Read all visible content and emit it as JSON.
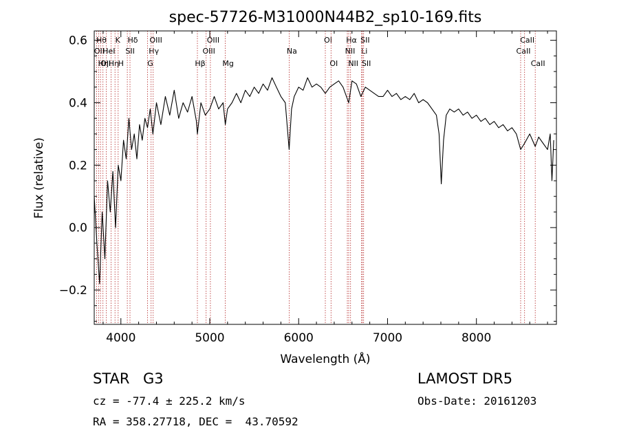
{
  "chart_data": {
    "type": "line",
    "title": "spec-57726-M31000N44B2_sp10-169.fits",
    "xlabel": "Wavelength (Å)",
    "ylabel": "Flux (relative)",
    "xlim": [
      3700,
      8900
    ],
    "ylim": [
      -0.31,
      0.63
    ],
    "xticks": [
      4000,
      5000,
      6000,
      7000,
      8000
    ],
    "yticks": [
      -0.2,
      0.0,
      0.2,
      0.4,
      0.6
    ],
    "xtick_labels": [
      "4000",
      "5000",
      "6000",
      "7000",
      "8000"
    ],
    "ytick_labels": [
      "−0.2",
      "0.0",
      "0.2",
      "0.4",
      "0.6"
    ],
    "grid": false,
    "series": [
      {
        "x": [
          3700,
          3730,
          3760,
          3790,
          3820,
          3850,
          3880,
          3910,
          3940,
          3970,
          4000,
          4030,
          4060,
          4090,
          4120,
          4150,
          4180,
          4210,
          4240,
          4270,
          4300,
          4330,
          4360,
          4400,
          4450,
          4500,
          4550,
          4600,
          4650,
          4700,
          4750,
          4800,
          4850,
          4861,
          4900,
          4950,
          5000,
          5050,
          5100,
          5150,
          5175,
          5200,
          5250,
          5300,
          5350,
          5400,
          5450,
          5500,
          5550,
          5600,
          5650,
          5700,
          5750,
          5800,
          5850,
          5893,
          5920,
          5950,
          6000,
          6050,
          6100,
          6150,
          6200,
          6250,
          6300,
          6350,
          6400,
          6450,
          6500,
          6563,
          6600,
          6650,
          6700,
          6750,
          6800,
          6850,
          6900,
          6950,
          7000,
          7050,
          7100,
          7150,
          7200,
          7250,
          7300,
          7350,
          7400,
          7450,
          7500,
          7550,
          7580,
          7605,
          7630,
          7660,
          7700,
          7750,
          7800,
          7850,
          7900,
          7950,
          8000,
          8050,
          8100,
          8150,
          8200,
          8250,
          8300,
          8350,
          8400,
          8450,
          8498,
          8542,
          8600,
          8662,
          8700,
          8750,
          8800,
          8830,
          8850,
          8870
        ],
        "y": [
          0.1,
          -0.05,
          -0.18,
          0.05,
          -0.1,
          0.15,
          0.05,
          0.18,
          0.0,
          0.2,
          0.15,
          0.28,
          0.22,
          0.35,
          0.25,
          0.3,
          0.22,
          0.33,
          0.28,
          0.35,
          0.32,
          0.38,
          0.3,
          0.4,
          0.33,
          0.42,
          0.36,
          0.44,
          0.35,
          0.4,
          0.37,
          0.42,
          0.34,
          0.3,
          0.4,
          0.36,
          0.38,
          0.42,
          0.38,
          0.4,
          0.33,
          0.38,
          0.4,
          0.43,
          0.4,
          0.44,
          0.42,
          0.45,
          0.43,
          0.46,
          0.44,
          0.48,
          0.45,
          0.42,
          0.4,
          0.25,
          0.38,
          0.42,
          0.45,
          0.44,
          0.48,
          0.45,
          0.46,
          0.45,
          0.43,
          0.45,
          0.46,
          0.47,
          0.45,
          0.4,
          0.47,
          0.46,
          0.42,
          0.45,
          0.44,
          0.43,
          0.42,
          0.42,
          0.44,
          0.42,
          0.43,
          0.41,
          0.42,
          0.41,
          0.43,
          0.4,
          0.41,
          0.4,
          0.38,
          0.36,
          0.3,
          0.14,
          0.28,
          0.36,
          0.38,
          0.37,
          0.38,
          0.36,
          0.37,
          0.35,
          0.36,
          0.34,
          0.35,
          0.33,
          0.34,
          0.32,
          0.33,
          0.31,
          0.32,
          0.3,
          0.25,
          0.27,
          0.3,
          0.26,
          0.29,
          0.27,
          0.25,
          0.3,
          0.15,
          0.28
        ]
      }
    ],
    "lines": [
      {
        "x": 3726,
        "label": "OII",
        "row": 1
      },
      {
        "x": 3750,
        "label": "Hθ",
        "row": 0
      },
      {
        "x": 3771,
        "label": "Hη",
        "row": 2
      },
      {
        "x": 3798,
        "label": "OII",
        "row": 2
      },
      {
        "x": 3835,
        "label": "HeI",
        "row": 1
      },
      {
        "x": 3889,
        "label": "Hη",
        "row": 2
      },
      {
        "x": 3934,
        "label": "K",
        "row": 0
      },
      {
        "x": 3969,
        "label": "H",
        "row": 2
      },
      {
        "x": 4072,
        "label": "SII",
        "row": 1
      },
      {
        "x": 4102,
        "label": "Hδ",
        "row": 0
      },
      {
        "x": 4300,
        "label": "G",
        "row": 2
      },
      {
        "x": 4340,
        "label": "Hγ",
        "row": 1
      },
      {
        "x": 4363,
        "label": "OIII",
        "row": 0
      },
      {
        "x": 4861,
        "label": "Hβ",
        "row": 2
      },
      {
        "x": 4959,
        "label": "OIII",
        "row": 1
      },
      {
        "x": 5007,
        "label": "OIII",
        "row": 0
      },
      {
        "x": 5175,
        "label": "Mg",
        "row": 2
      },
      {
        "x": 5893,
        "label": "Na",
        "row": 1
      },
      {
        "x": 6300,
        "label": "OI",
        "row": 0
      },
      {
        "x": 6364,
        "label": "OI",
        "row": 2
      },
      {
        "x": 6548,
        "label": "NII",
        "row": 1
      },
      {
        "x": 6563,
        "label": "Hα",
        "row": 0
      },
      {
        "x": 6584,
        "label": "NII",
        "row": 2
      },
      {
        "x": 6708,
        "label": "Li",
        "row": 1
      },
      {
        "x": 6717,
        "label": "SII",
        "row": 0
      },
      {
        "x": 6731,
        "label": "SII",
        "row": 2
      },
      {
        "x": 8498,
        "label": "CaII",
        "row": 1
      },
      {
        "x": 8542,
        "label": "CaII",
        "row": 0
      },
      {
        "x": 8662,
        "label": "CaII",
        "row": 2
      }
    ]
  },
  "info": {
    "class_label": "STAR",
    "subclass": "G3",
    "survey": "LAMOST DR5",
    "cz": "cz = -77.4 ± 225.2 km/s",
    "obs_date": "Obs-Date: 20161203",
    "coords": "RA = 358.27718, DEC =  43.70592"
  },
  "colors": {
    "spectrum": "#000000",
    "line_markers": "#b22222"
  }
}
